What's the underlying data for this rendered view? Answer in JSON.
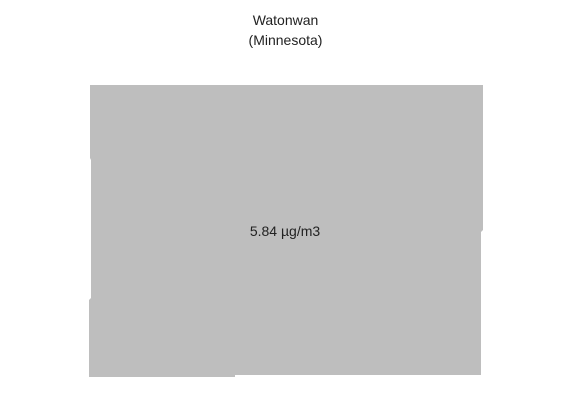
{
  "map": {
    "county": "Watonwan",
    "state": "(Minnesota)",
    "value_label": "5.84 µg/m3",
    "region_fill": "#bebebe"
  }
}
